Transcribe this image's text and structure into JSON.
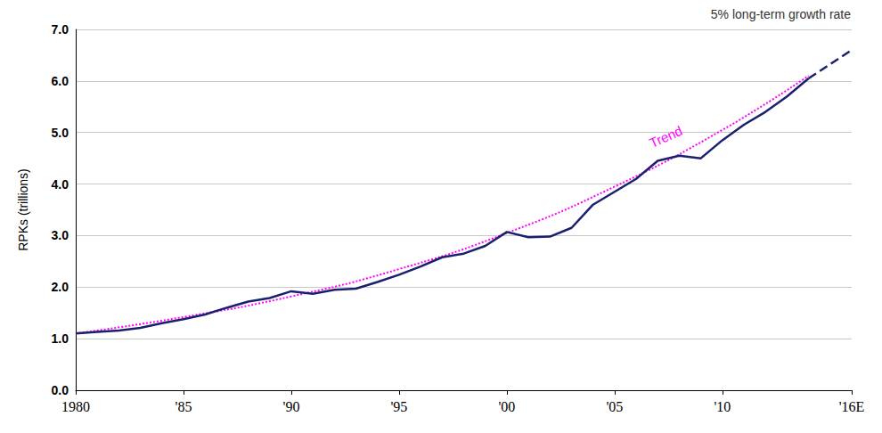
{
  "chart_data": {
    "type": "line",
    "title": "5% long-term growth rate",
    "y_label": "RPKs (trillions)",
    "xlim": [
      1980,
      2016
    ],
    "xticks": [
      {
        "value": 1980,
        "label": "1980"
      },
      {
        "value": 1985,
        "label": "'85"
      },
      {
        "value": 1990,
        "label": "'90"
      },
      {
        "value": 1995,
        "label": "'95"
      },
      {
        "value": 2000,
        "label": "'00"
      },
      {
        "value": 2005,
        "label": "'05"
      },
      {
        "value": 2010,
        "label": "'10"
      },
      {
        "value": 2016,
        "label": "'16E"
      }
    ],
    "ylim": [
      0,
      7
    ],
    "yticks": [
      {
        "value": 0,
        "label": "0.0"
      },
      {
        "value": 1,
        "label": "1.0"
      },
      {
        "value": 2,
        "label": "2.0"
      },
      {
        "value": 3,
        "label": "3.0"
      },
      {
        "value": 4,
        "label": "4.0"
      },
      {
        "value": 5,
        "label": "5.0"
      },
      {
        "value": 6,
        "label": "6.0"
      },
      {
        "value": 7,
        "label": "7.0"
      }
    ],
    "grid": true,
    "series": [
      {
        "color": "#1a1f6e",
        "line_style": "solid",
        "x": [
          1980,
          1981,
          1982,
          1983,
          1984,
          1985,
          1986,
          1987,
          1988,
          1989,
          1990,
          1991,
          1992,
          1993,
          1994,
          1995,
          1996,
          1997,
          1998,
          1999,
          2000,
          2001,
          2002,
          2003,
          2004,
          2005,
          2006,
          2007,
          2008,
          2009,
          2010,
          2011,
          2012,
          2013,
          2014
        ],
        "values": [
          1.1,
          1.13,
          1.16,
          1.21,
          1.3,
          1.38,
          1.47,
          1.6,
          1.72,
          1.79,
          1.92,
          1.87,
          1.95,
          1.97,
          2.1,
          2.24,
          2.4,
          2.58,
          2.65,
          2.8,
          3.07,
          2.97,
          2.98,
          3.15,
          3.6,
          3.85,
          4.1,
          4.45,
          4.55,
          4.5,
          4.85,
          5.15,
          5.4,
          5.7,
          6.05
        ]
      },
      {
        "color": "#1a1f6e",
        "line_style": "dashed",
        "x": [
          2014,
          2016
        ],
        "values": [
          6.05,
          6.6
        ]
      },
      {
        "name": "Trend",
        "color": "#ff00ff",
        "line_style": "dotted",
        "x": [
          1980,
          1985,
          1990,
          1995,
          2000,
          2005,
          2010,
          2014
        ],
        "values": [
          1.1,
          1.42,
          1.82,
          2.35,
          3.05,
          3.95,
          5.05,
          6.1
        ]
      }
    ],
    "annotations": [
      {
        "text": "Trend",
        "x": 2007.5,
        "y": 4.8,
        "color": "#ff00ff"
      }
    ]
  }
}
